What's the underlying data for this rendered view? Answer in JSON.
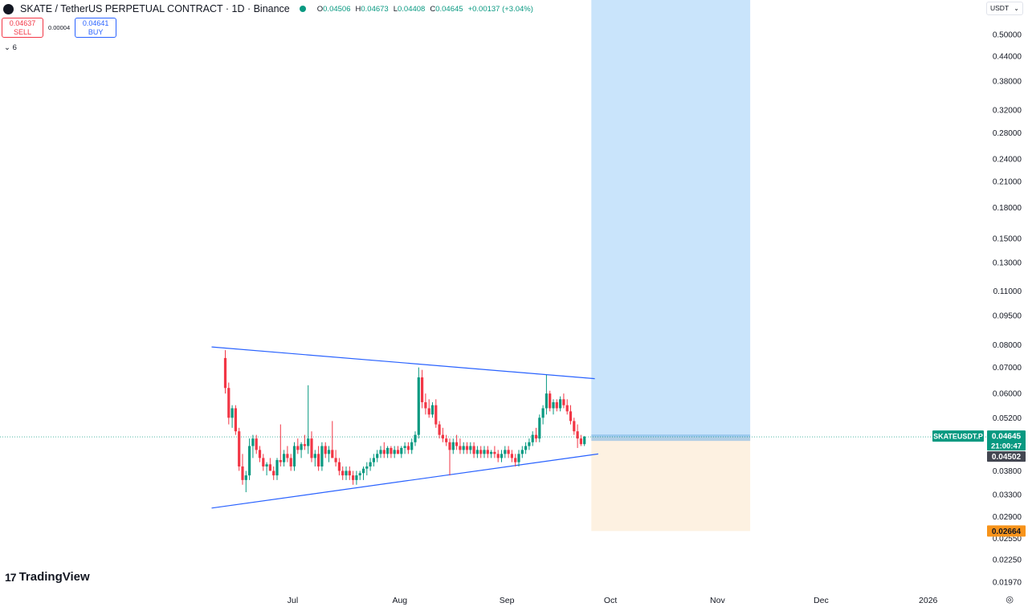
{
  "header": {
    "title": "SKATE / TetherUS PERPETUAL CONTRACT · 1D · Binance",
    "ohlc": [
      {
        "k": "O",
        "v": "0.04506"
      },
      {
        "k": "H",
        "v": "0.04673"
      },
      {
        "k": "L",
        "v": "0.04408"
      },
      {
        "k": "C",
        "v": "0.04645"
      },
      {
        "k": "",
        "v": "+0.00137 (+3.04%)"
      }
    ]
  },
  "trade": {
    "sell_price": "0.04637",
    "sell_label": "SELL",
    "spread": "0.00004",
    "buy_price": "0.04641",
    "buy_label": "BUY"
  },
  "indicators": {
    "collapse_label": "⌄ 6"
  },
  "currency": {
    "label": "USDT",
    "chevron": "⌄"
  },
  "brand": {
    "mark": "17",
    "name": "TradingView"
  },
  "settings_icon": "◎",
  "price_scale": {
    "ticks": [
      "0.50000",
      "0.44000",
      "0.38000",
      "0.32000",
      "0.28000",
      "0.24000",
      "0.21000",
      "0.18000",
      "0.15000",
      "0.13000",
      "0.11000",
      "0.09500",
      "0.08000",
      "0.07000",
      "0.06000",
      "0.05200",
      "0.04500",
      "0.03800",
      "0.03300",
      "0.02900",
      "0.02550",
      "0.02250",
      "0.01970"
    ],
    "tick_values": [
      0.5,
      0.44,
      0.38,
      0.32,
      0.28,
      0.24,
      0.21,
      0.18,
      0.15,
      0.13,
      0.11,
      0.095,
      0.08,
      0.07,
      0.06,
      0.052,
      0.045,
      0.038,
      0.033,
      0.029,
      0.0255,
      0.0225,
      0.0197
    ],
    "min": 0.0185,
    "max": 0.55,
    "scale": "log"
  },
  "time_axis": [
    "Jul",
    "Aug",
    "Sep",
    "Oct",
    "Nov",
    "Dec",
    "2026"
  ],
  "labels": {
    "symbol": "SKATEUSDT.P",
    "last_price": "0.04645",
    "countdown": "21:00:47",
    "level": "0.04502",
    "stop": "0.02664"
  },
  "colors": {
    "up": "#089981",
    "down": "#f23645",
    "trend": "#2962ff",
    "profit_zone": "#c9e4fb",
    "loss_zone": "#fdf1e1",
    "stop": "#f7931a",
    "level_box": "#434651"
  },
  "chart_data": {
    "type": "candlestick",
    "interval": "1D",
    "start_date": "2025-06-11",
    "ohlc": [
      [
        0.074,
        0.0775,
        0.06,
        0.062
      ],
      [
        0.062,
        0.064,
        0.05,
        0.052
      ],
      [
        0.052,
        0.056,
        0.049,
        0.055
      ],
      [
        0.055,
        0.056,
        0.047,
        0.048
      ],
      [
        0.048,
        0.049,
        0.038,
        0.039
      ],
      [
        0.039,
        0.042,
        0.035,
        0.036
      ],
      [
        0.036,
        0.038,
        0.0335,
        0.037
      ],
      [
        0.037,
        0.046,
        0.036,
        0.044
      ],
      [
        0.044,
        0.047,
        0.041,
        0.046
      ],
      [
        0.046,
        0.047,
        0.042,
        0.043
      ],
      [
        0.043,
        0.044,
        0.04,
        0.041
      ],
      [
        0.041,
        0.042,
        0.038,
        0.039
      ],
      [
        0.039,
        0.04,
        0.037,
        0.0395
      ],
      [
        0.0395,
        0.041,
        0.038,
        0.038
      ],
      [
        0.038,
        0.039,
        0.036,
        0.037
      ],
      [
        0.037,
        0.041,
        0.036,
        0.0405
      ],
      [
        0.0405,
        0.05,
        0.039,
        0.04
      ],
      [
        0.04,
        0.043,
        0.039,
        0.042
      ],
      [
        0.042,
        0.044,
        0.04,
        0.041
      ],
      [
        0.041,
        0.042,
        0.038,
        0.039
      ],
      [
        0.039,
        0.045,
        0.038,
        0.044
      ],
      [
        0.044,
        0.046,
        0.042,
        0.043
      ],
      [
        0.043,
        0.045,
        0.041,
        0.0445
      ],
      [
        0.0445,
        0.047,
        0.043,
        0.044
      ],
      [
        0.044,
        0.063,
        0.042,
        0.046
      ],
      [
        0.046,
        0.048,
        0.04,
        0.041
      ],
      [
        0.041,
        0.043,
        0.039,
        0.042
      ],
      [
        0.042,
        0.044,
        0.038,
        0.039
      ],
      [
        0.039,
        0.045,
        0.038,
        0.044
      ],
      [
        0.044,
        0.045,
        0.041,
        0.042
      ],
      [
        0.042,
        0.044,
        0.04,
        0.043
      ],
      [
        0.043,
        0.051,
        0.041,
        0.041
      ],
      [
        0.041,
        0.043,
        0.039,
        0.04
      ],
      [
        0.04,
        0.041,
        0.037,
        0.038
      ],
      [
        0.038,
        0.039,
        0.036,
        0.037
      ],
      [
        0.037,
        0.039,
        0.036,
        0.038
      ],
      [
        0.038,
        0.039,
        0.036,
        0.037
      ],
      [
        0.037,
        0.038,
        0.035,
        0.036
      ],
      [
        0.036,
        0.038,
        0.035,
        0.037
      ],
      [
        0.037,
        0.038,
        0.036,
        0.0375
      ],
      [
        0.0375,
        0.039,
        0.036,
        0.0385
      ],
      [
        0.0385,
        0.04,
        0.037,
        0.039
      ],
      [
        0.039,
        0.041,
        0.038,
        0.04
      ],
      [
        0.04,
        0.042,
        0.039,
        0.041
      ],
      [
        0.041,
        0.043,
        0.04,
        0.042
      ],
      [
        0.042,
        0.044,
        0.041,
        0.043
      ],
      [
        0.043,
        0.045,
        0.041,
        0.042
      ],
      [
        0.042,
        0.044,
        0.041,
        0.0435
      ],
      [
        0.0435,
        0.044,
        0.041,
        0.042
      ],
      [
        0.042,
        0.044,
        0.041,
        0.043
      ],
      [
        0.043,
        0.044,
        0.042,
        0.042
      ],
      [
        0.042,
        0.044,
        0.041,
        0.0435
      ],
      [
        0.0435,
        0.045,
        0.042,
        0.044
      ],
      [
        0.044,
        0.045,
        0.042,
        0.043
      ],
      [
        0.043,
        0.046,
        0.042,
        0.045
      ],
      [
        0.045,
        0.048,
        0.044,
        0.047
      ],
      [
        0.047,
        0.07,
        0.046,
        0.066
      ],
      [
        0.066,
        0.069,
        0.055,
        0.057
      ],
      [
        0.057,
        0.06,
        0.053,
        0.055
      ],
      [
        0.055,
        0.058,
        0.052,
        0.053
      ],
      [
        0.053,
        0.057,
        0.052,
        0.056
      ],
      [
        0.056,
        0.058,
        0.049,
        0.05
      ],
      [
        0.05,
        0.051,
        0.046,
        0.047
      ],
      [
        0.047,
        0.049,
        0.045,
        0.046
      ],
      [
        0.046,
        0.047,
        0.044,
        0.045
      ],
      [
        0.045,
        0.046,
        0.037,
        0.043
      ],
      [
        0.043,
        0.046,
        0.042,
        0.045
      ],
      [
        0.045,
        0.047,
        0.043,
        0.044
      ],
      [
        0.044,
        0.046,
        0.042,
        0.043
      ],
      [
        0.043,
        0.045,
        0.042,
        0.044
      ],
      [
        0.044,
        0.045,
        0.042,
        0.043
      ],
      [
        0.043,
        0.045,
        0.042,
        0.044
      ],
      [
        0.044,
        0.045,
        0.041,
        0.042
      ],
      [
        0.042,
        0.044,
        0.041,
        0.043
      ],
      [
        0.043,
        0.044,
        0.041,
        0.042
      ],
      [
        0.042,
        0.044,
        0.041,
        0.043
      ],
      [
        0.043,
        0.044,
        0.041,
        0.042
      ],
      [
        0.042,
        0.043,
        0.041,
        0.0425
      ],
      [
        0.0425,
        0.044,
        0.041,
        0.042
      ],
      [
        0.042,
        0.043,
        0.04,
        0.041
      ],
      [
        0.041,
        0.043,
        0.04,
        0.042
      ],
      [
        0.042,
        0.044,
        0.041,
        0.043
      ],
      [
        0.043,
        0.044,
        0.041,
        0.042
      ],
      [
        0.042,
        0.043,
        0.04,
        0.041
      ],
      [
        0.041,
        0.042,
        0.039,
        0.04
      ],
      [
        0.04,
        0.043,
        0.039,
        0.042
      ],
      [
        0.042,
        0.044,
        0.041,
        0.043
      ],
      [
        0.043,
        0.045,
        0.042,
        0.044
      ],
      [
        0.044,
        0.046,
        0.043,
        0.045
      ],
      [
        0.045,
        0.048,
        0.044,
        0.047
      ],
      [
        0.047,
        0.049,
        0.045,
        0.046
      ],
      [
        0.046,
        0.053,
        0.045,
        0.052
      ],
      [
        0.052,
        0.056,
        0.05,
        0.055
      ],
      [
        0.055,
        0.067,
        0.053,
        0.06
      ],
      [
        0.06,
        0.061,
        0.054,
        0.055
      ],
      [
        0.055,
        0.058,
        0.053,
        0.057
      ],
      [
        0.057,
        0.058,
        0.054,
        0.055
      ],
      [
        0.055,
        0.059,
        0.054,
        0.058
      ],
      [
        0.058,
        0.06,
        0.055,
        0.056
      ],
      [
        0.056,
        0.058,
        0.053,
        0.054
      ],
      [
        0.054,
        0.056,
        0.05,
        0.051
      ],
      [
        0.051,
        0.052,
        0.047,
        0.048
      ],
      [
        0.048,
        0.05,
        0.0435,
        0.046
      ],
      [
        0.046,
        0.047,
        0.044,
        0.0445
      ],
      [
        0.0445,
        0.0467,
        0.044,
        0.0465
      ]
    ],
    "trendlines": [
      {
        "name": "upper",
        "from": [
          "2025-06-11",
          0.079
        ],
        "to": [
          "2025-09-26",
          0.0655
        ]
      },
      {
        "name": "lower",
        "from": [
          "2025-06-11",
          0.0305
        ],
        "to": [
          "2025-09-27",
          0.042
        ]
      }
    ],
    "long_position": {
      "entry": 0.04645,
      "target": 0.55,
      "stop": 0.02664,
      "start": "2025-09-25",
      "end": "2025-11-10"
    }
  }
}
